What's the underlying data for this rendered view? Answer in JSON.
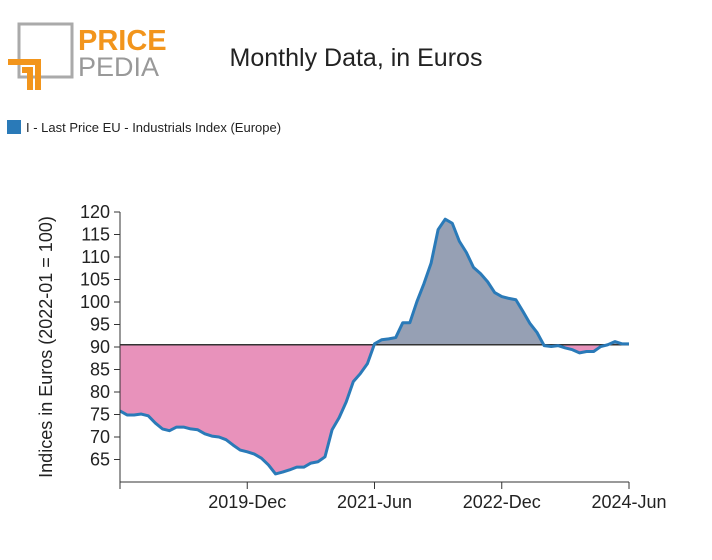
{
  "logo": {
    "part1": "PRICE",
    "part2": "PEDIA"
  },
  "chart_data": {
    "type": "line",
    "title": "Monthly Data, in Euros",
    "y_label": "Indices in Euros (2022-01 = 100)",
    "x": [
      "2018-Jun",
      "2018-Jul",
      "2018-Aug",
      "2018-Sep",
      "2018-Oct",
      "2018-Nov",
      "2018-Dec",
      "2019-Jan",
      "2019-Feb",
      "2019-Mar",
      "2019-Apr",
      "2019-May",
      "2019-Jun",
      "2019-Jul",
      "2019-Aug",
      "2019-Sep",
      "2019-Oct",
      "2019-Nov",
      "2019-Dec",
      "2020-Jan",
      "2020-Feb",
      "2020-Mar",
      "2020-Apr",
      "2020-May",
      "2020-Jun",
      "2020-Jul",
      "2020-Aug",
      "2020-Sep",
      "2020-Oct",
      "2020-Nov",
      "2020-Dec",
      "2021-Jan",
      "2021-Feb",
      "2021-Mar",
      "2021-Apr",
      "2021-May",
      "2021-Jun",
      "2021-Jul",
      "2021-Aug",
      "2021-Sep",
      "2021-Oct",
      "2021-Nov",
      "2021-Dec",
      "2022-Jan",
      "2022-Feb",
      "2022-Mar",
      "2022-Apr",
      "2022-May",
      "2022-Jun",
      "2022-Jul",
      "2022-Aug",
      "2022-Sep",
      "2022-Oct",
      "2022-Nov",
      "2022-Dec",
      "2023-Jan",
      "2023-Feb",
      "2023-Mar",
      "2023-Apr",
      "2023-May",
      "2023-Jun",
      "2023-Jul",
      "2023-Aug",
      "2023-Sep",
      "2023-Oct",
      "2023-Nov",
      "2023-Dec",
      "2024-Jan",
      "2024-Feb",
      "2024-Mar",
      "2024-Apr",
      "2024-May",
      "2024-Jun"
    ],
    "series": [
      {
        "name": "I - Last Price EU - Industrials Index (Europe)",
        "color": "#2a7ab8",
        "values": [
          75.8,
          74.9,
          74.9,
          75.1,
          74.7,
          73.1,
          71.8,
          71.4,
          72.2,
          72.2,
          71.8,
          71.6,
          70.7,
          70.2,
          70.0,
          69.4,
          68.2,
          67.1,
          66.7,
          66.2,
          65.3,
          63.8,
          61.8,
          62.2,
          62.7,
          63.3,
          63.3,
          64.2,
          64.5,
          65.6,
          71.6,
          74.3,
          77.8,
          82.3,
          84.1,
          86.3,
          90.7,
          91.6,
          91.8,
          92.1,
          95.4,
          95.4,
          100.1,
          104.1,
          108.6,
          116.1,
          118.4,
          117.5,
          113.5,
          111.0,
          107.7,
          106.3,
          104.5,
          102.1,
          101.2,
          100.8,
          100.5,
          97.9,
          95.2,
          93.2,
          90.3,
          90.1,
          90.3,
          89.8,
          89.4,
          88.7,
          89.0,
          89.0,
          90.1,
          90.5,
          91.2,
          90.7,
          90.7
        ]
      }
    ],
    "reference": 90.5,
    "above_color": "#96a0b4",
    "below_color": "#e892bb",
    "ylim": [
      60,
      120
    ],
    "yticks": [
      65,
      70,
      75,
      80,
      85,
      90,
      95,
      100,
      105,
      110,
      115,
      120
    ],
    "xticks": [
      "2019-Dec",
      "2021-Jun",
      "2022-Dec",
      "2024-Jun"
    ]
  }
}
